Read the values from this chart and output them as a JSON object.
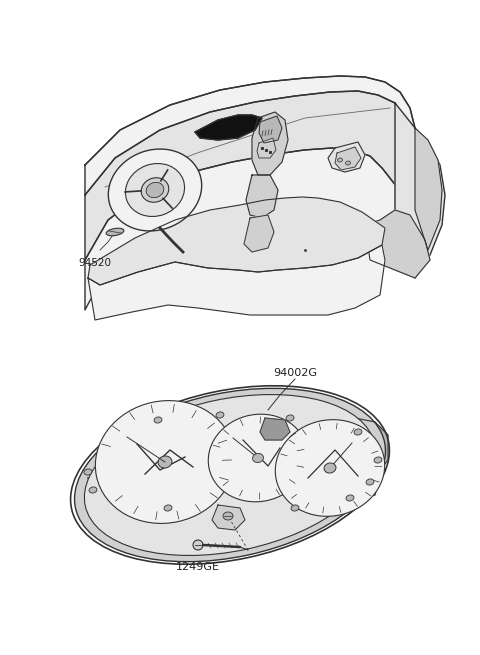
{
  "background_color": "#ffffff",
  "fig_width": 4.8,
  "fig_height": 6.55,
  "dpi": 100,
  "label_94520": "94520",
  "label_94002G": "94002G",
  "label_1249GE": "1249GE",
  "line_color": "#555555",
  "line_color_dark": "#333333",
  "fill_dark": "#111111",
  "fill_gray1": "#f2f2f2",
  "fill_gray2": "#e4e4e4",
  "fill_gray3": "#d0d0d0",
  "fill_gray4": "#b8b8b8",
  "fill_gray5": "#999999"
}
